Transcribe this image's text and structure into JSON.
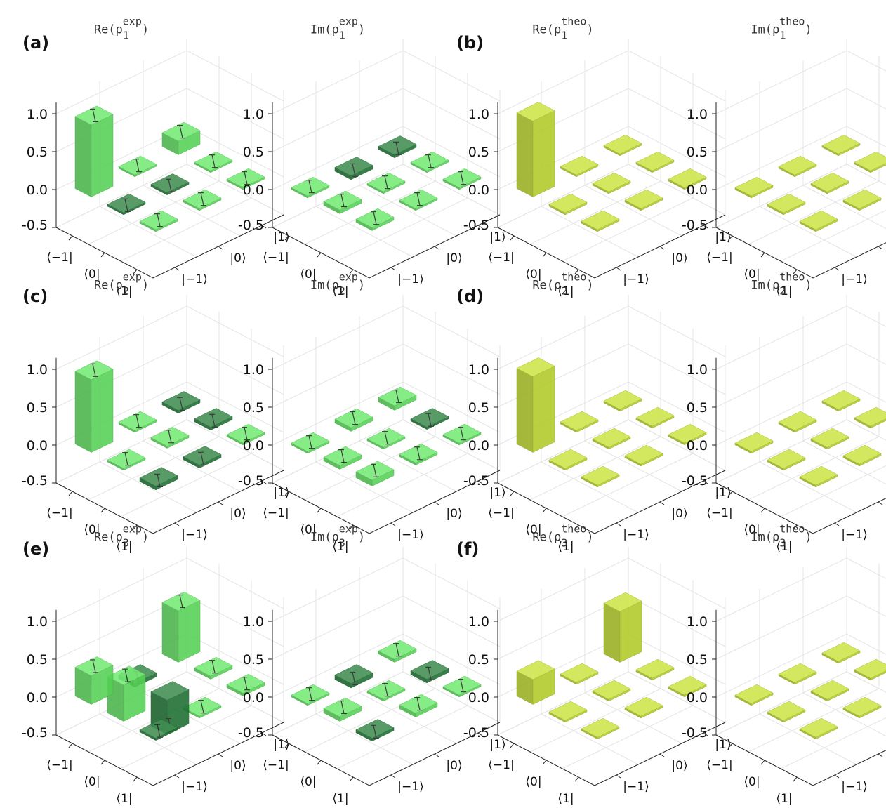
{
  "panel_letters": [
    "(a)",
    "(b)",
    "(c)",
    "(d)",
    "(e)",
    "(f)"
  ],
  "colors": {
    "exp_light": "#5ee85e",
    "exp_dark": "#1f7a35",
    "theo": "#c6e02a",
    "error_bar": "#222222",
    "grid": "#e4e4e4"
  },
  "chart_data": [
    {
      "id": "re-rho1-exp",
      "type": "bar3d",
      "group": "exp",
      "title": {
        "prefix": "Re",
        "sup": "exp",
        "sub": "1"
      },
      "zlim": [
        -0.5,
        1.0
      ],
      "zticks": [
        "1.0",
        "0.5",
        "0.0",
        "-0.5"
      ],
      "row_labels": [
        "⟨−1|",
        "⟨0|",
        "⟨1|"
      ],
      "col_labels": [
        "|−1⟩",
        "|0⟩",
        "|1⟩"
      ],
      "values": [
        [
          0.95,
          0.02,
          0.18
        ],
        [
          -0.02,
          -0.03,
          0.02
        ],
        [
          0.0,
          0.0,
          0.0
        ]
      ]
    },
    {
      "id": "im-rho1-exp",
      "type": "bar3d",
      "group": "exp",
      "title": {
        "prefix": "Im",
        "sup": "exp",
        "sub": "1"
      },
      "zlim": [
        -0.5,
        1.0
      ],
      "zticks": [
        "1.0",
        "0.5",
        "0.0",
        "-0.5"
      ],
      "row_labels": [
        "⟨−1|",
        "⟨0|",
        "⟨1|"
      ],
      "col_labels": [
        "|−1⟩",
        "|0⟩",
        "|1⟩"
      ],
      "values": [
        [
          0.0,
          -0.05,
          -0.04
        ],
        [
          0.05,
          0.0,
          0.0
        ],
        [
          0.04,
          0.0,
          0.0
        ]
      ]
    },
    {
      "id": "re-rho1-theo",
      "type": "bar3d",
      "group": "theo",
      "title": {
        "prefix": "Re",
        "sup": "theo",
        "sub": "1"
      },
      "zlim": [
        -0.5,
        1.0
      ],
      "zticks": [
        "1.0",
        "0.5",
        "0.0",
        "-0.5"
      ],
      "row_labels": [
        "⟨−1|",
        "⟨0|",
        "⟨1|"
      ],
      "col_labels": [
        "|−1⟩",
        "|0⟩",
        "|1⟩"
      ],
      "values": [
        [
          1.0,
          0.0,
          0.0
        ],
        [
          0.0,
          0.0,
          0.0
        ],
        [
          0.0,
          0.0,
          0.0
        ]
      ]
    },
    {
      "id": "im-rho1-theo",
      "type": "bar3d",
      "group": "theo",
      "title": {
        "prefix": "Im",
        "sup": "theo",
        "sub": "1"
      },
      "zlim": [
        -0.5,
        1.0
      ],
      "zticks": [
        "1.0",
        "0.5",
        "0.0",
        "-0.5"
      ],
      "row_labels": [
        "⟨−1|",
        "⟨0|",
        "⟨1|"
      ],
      "col_labels": [
        "|−1⟩",
        "|0⟩",
        "|1⟩"
      ],
      "values": [
        [
          0.0,
          0.0,
          0.0
        ],
        [
          0.0,
          0.0,
          0.0
        ],
        [
          0.0,
          0.0,
          0.0
        ]
      ]
    },
    {
      "id": "re-rho2-exp",
      "type": "bar3d",
      "group": "exp",
      "title": {
        "prefix": "Re",
        "sup": "exp",
        "sub": "2"
      },
      "zlim": [
        -0.5,
        1.0
      ],
      "zticks": [
        "1.0",
        "0.5",
        "0.0",
        "-0.5"
      ],
      "row_labels": [
        "⟨−1|",
        "⟨0|",
        "⟨1|"
      ],
      "col_labels": [
        "|−1⟩",
        "|0⟩",
        "|1⟩"
      ],
      "values": [
        [
          0.96,
          0.02,
          -0.04
        ],
        [
          0.02,
          0.03,
          -0.04
        ],
        [
          -0.05,
          -0.04,
          0.02
        ]
      ]
    },
    {
      "id": "im-rho2-exp",
      "type": "bar3d",
      "group": "exp",
      "title": {
        "prefix": "Im",
        "sup": "exp",
        "sub": "2"
      },
      "zlim": [
        -0.5,
        1.0
      ],
      "zticks": [
        "1.0",
        "0.5",
        "0.0",
        "-0.5"
      ],
      "row_labels": [
        "⟨−1|",
        "⟨0|",
        "⟨1|"
      ],
      "col_labels": [
        "|−1⟩",
        "|0⟩",
        "|1⟩"
      ],
      "values": [
        [
          0.0,
          0.05,
          0.06
        ],
        [
          0.05,
          0.0,
          -0.03
        ],
        [
          0.08,
          0.03,
          0.0
        ]
      ]
    },
    {
      "id": "re-rho3-exp",
      "type": "bar3d",
      "group": "exp",
      "title": {
        "prefix": "Re",
        "sup": "exp",
        "sub": "3"
      },
      "zlim": [
        -0.5,
        1.0
      ],
      "zticks": [
        "1.0",
        "0.5",
        "0.0",
        "-0.5"
      ],
      "row_labels": [
        "⟨−1|",
        "⟨0|",
        "⟨1|"
      ],
      "col_labels": [
        "|−1⟩",
        "|0⟩",
        "|1⟩"
      ],
      "values": [
        [
          0.38,
          -0.05,
          0.68
        ],
        [
          0.48,
          -0.45,
          0.04
        ],
        [
          -0.03,
          0.02,
          0.04
        ]
      ]
    },
    {
      "id": "im-rho3-exp",
      "type": "bar3d",
      "group": "exp",
      "title": {
        "prefix": "Im",
        "sup": "exp",
        "sub": "3"
      },
      "zlim": [
        -0.5,
        1.0
      ],
      "zticks": [
        "1.0",
        "0.5",
        "0.0",
        "-0.5"
      ],
      "row_labels": [
        "⟨−1|",
        "⟨0|",
        "⟨1|"
      ],
      "col_labels": [
        "|−1⟩",
        "|0⟩",
        "|1⟩"
      ],
      "values": [
        [
          0.0,
          -0.06,
          0.04
        ],
        [
          0.06,
          0.0,
          -0.05
        ],
        [
          -0.04,
          0.05,
          0.0
        ]
      ]
    },
    {
      "id": "re-rho3-theo",
      "type": "bar3d",
      "group": "theo",
      "title": {
        "prefix": "Re",
        "sup": "theo",
        "sub": "3"
      },
      "zlim": [
        -0.5,
        1.0
      ],
      "zticks": [
        "1.0",
        "0.5",
        "0.0",
        "-0.5"
      ],
      "row_labels": [
        "⟨−1|",
        "⟨0|",
        "⟨1|"
      ],
      "col_labels": [
        "|−1⟩",
        "|0⟩",
        "|1⟩"
      ],
      "values": [
        [
          0.33,
          0.0,
          0.67
        ],
        [
          0.0,
          0.0,
          0.0
        ],
        [
          0.0,
          0.0,
          0.0
        ]
      ]
    },
    {
      "id": "im-rho3-theo",
      "type": "bar3d",
      "group": "theo",
      "title": {
        "prefix": "Im",
        "sup": "theo",
        "sub": "3"
      },
      "zlim": [
        -0.5,
        1.0
      ],
      "zticks": [
        "1.0",
        "0.5",
        "0.0",
        "-0.5"
      ],
      "row_labels": [
        "⟨−1|",
        "⟨0|",
        "⟨1|"
      ],
      "col_labels": [
        "|−1⟩",
        "|0⟩",
        "|1⟩"
      ],
      "values": [
        [
          0.0,
          0.0,
          0.0
        ],
        [
          0.0,
          0.0,
          0.0
        ],
        [
          0.0,
          0.0,
          0.0
        ]
      ]
    },
    {
      "id": "re-rho2-theo",
      "type": "bar3d",
      "group": "theo",
      "title": {
        "prefix": "Re",
        "sup": "theo",
        "sub": "2"
      },
      "zlim": [
        -0.5,
        1.0
      ],
      "zticks": [
        "1.0",
        "0.5",
        "0.0",
        "-0.5"
      ],
      "row_labels": [
        "⟨−1|",
        "⟨0|",
        "⟨1|"
      ],
      "col_labels": [
        "|−1⟩",
        "|0⟩",
        "|1⟩"
      ],
      "values": [
        [
          1.0,
          0.0,
          0.0
        ],
        [
          0.0,
          0.0,
          0.0
        ],
        [
          0.0,
          0.0,
          0.0
        ]
      ]
    },
    {
      "id": "im-rho2-theo",
      "type": "bar3d",
      "group": "theo",
      "title": {
        "prefix": "Im",
        "sup": "theo",
        "sub": "2"
      },
      "zlim": [
        -0.5,
        1.0
      ],
      "zticks": [
        "1.0",
        "0.5",
        "0.0",
        "-0.5"
      ],
      "row_labels": [
        "⟨−1|",
        "⟨0|",
        "⟨1|"
      ],
      "col_labels": [
        "|−1⟩",
        "|0⟩",
        "|1⟩"
      ],
      "values": [
        [
          0.0,
          0.0,
          0.0
        ],
        [
          0.0,
          0.0,
          0.0
        ],
        [
          0.0,
          0.0,
          0.0
        ]
      ]
    }
  ]
}
